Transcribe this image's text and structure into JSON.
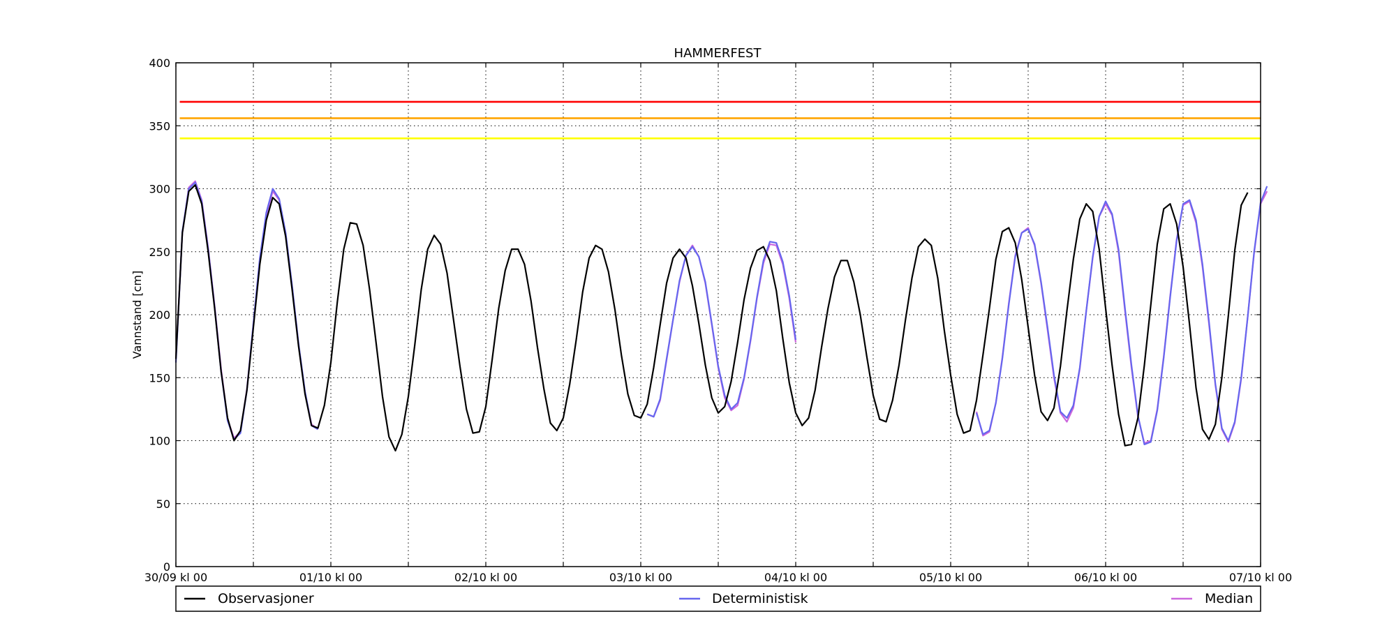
{
  "chart_data": {
    "type": "line",
    "title": "HAMMERFEST",
    "ylabel": "Vannstand [cm]",
    "xlabel": "",
    "ylim": [
      0,
      400
    ],
    "xlim": [
      0,
      168
    ],
    "x_unit": "hours since 30/09 kl 00",
    "yticks": [
      0,
      50,
      100,
      150,
      200,
      250,
      300,
      350,
      400
    ],
    "xticks": [
      {
        "x": 0,
        "label": "30/09 kl 00"
      },
      {
        "x": 12,
        "label": ""
      },
      {
        "x": 24,
        "label": "01/10 kl 00"
      },
      {
        "x": 36,
        "label": ""
      },
      {
        "x": 48,
        "label": "02/10 kl 00"
      },
      {
        "x": 60,
        "label": ""
      },
      {
        "x": 72,
        "label": "03/10 kl 00"
      },
      {
        "x": 84,
        "label": ""
      },
      {
        "x": 96,
        "label": "04/10 kl 00"
      },
      {
        "x": 108,
        "label": ""
      },
      {
        "x": 120,
        "label": "05/10 kl 00"
      },
      {
        "x": 132,
        "label": ""
      },
      {
        "x": 144,
        "label": "06/10 kl 00"
      },
      {
        "x": 156,
        "label": ""
      },
      {
        "x": 168,
        "label": "07/10 kl 00"
      }
    ],
    "grid": true,
    "thresholds": [
      {
        "value": 369,
        "color": "#ff0000"
      },
      {
        "value": 356,
        "color": "#ffa500"
      },
      {
        "value": 340,
        "color": "#ffff00"
      }
    ],
    "series": [
      {
        "name": "Observasjoner",
        "color": "#000000",
        "width": 2.2,
        "segments": [
          {
            "x0": 0,
            "values": [
              165,
              265,
              298,
              303,
              288,
              250,
              205,
              155,
              118,
              100,
              108,
              140,
              190,
              240,
              275,
              293,
              288,
              262,
              220,
              175,
              137,
              112,
              110,
              128,
              162,
              210,
              252,
              273,
              272,
              255,
              220,
              178,
              135,
              103,
              92,
              105,
              135,
              176,
              220,
              252,
              263,
              256,
              233,
              196,
              159,
              125,
              106,
              107,
              127,
              165,
              205,
              235,
              252,
              252,
              240,
              211,
              174,
              141,
              114,
              108,
              118,
              145,
              180,
              218,
              245,
              255,
              252,
              234,
              204,
              168,
              137,
              120,
              118,
              129,
              158,
              192,
              225,
              245,
              252,
              245,
              223,
              193,
              160,
              134,
              122,
              127,
              147,
              178,
              212,
              237,
              251,
              254,
              243,
              219,
              181,
              146,
              122,
              112,
              118,
              140,
              174,
              205,
              230,
              243,
              243,
              226,
              200,
              167,
              136,
              117,
              115,
              132,
              160,
              196,
              229,
              254,
              260,
              255,
              229,
              188,
              152,
              121,
              106,
              108,
              132,
              168,
              205,
              244,
              266,
              269,
              257,
              228,
              190,
              152,
              123,
              116,
              126,
              159,
              203,
              244,
              276,
              288,
              282,
              252,
              205,
              160,
              121,
              96,
              97,
              118,
              160,
              208,
              256,
              284,
              288,
              272,
              238,
              192,
              142,
              109,
              101,
              113,
              150,
              199,
              251,
              287,
              297
            ]
          }
        ]
      },
      {
        "name": "Deterministisk",
        "color": "#6666ee",
        "width": 2.2,
        "segments": [
          {
            "x0": 0,
            "values": [
              162,
              266,
              300,
              305,
              290,
              252,
              206,
              155,
              116,
              101,
              106,
              140,
              193,
              245,
              281,
              300,
              292,
              265,
              223,
              177,
              139,
              112,
              109
            ]
          },
          {
            "x0": 73,
            "values": [
              121,
              119,
              133,
              165,
              196,
              227,
              247,
              254,
              246,
              226,
              193,
              159,
              136,
              125,
              130,
              150,
              180,
              214,
              243,
              258,
              257,
              242,
              215,
              180
            ]
          },
          {
            "x0": 124,
            "values": [
              122,
              105,
              108,
              130,
              165,
              208,
              246,
              265,
              268,
              256,
              226,
              190,
              152,
              123,
              118,
              128,
              158,
              203,
              246,
              278,
              290,
              280,
              252,
              205,
              160,
              120,
              97,
              99,
              124,
              166,
              214,
              259,
              288,
              291,
              275,
              240,
              195,
              145,
              110,
              100,
              115,
              150,
              198,
              250,
              289,
              302
            ]
          }
        ]
      },
      {
        "name": "Median",
        "color": "#cc66dd",
        "width": 2.2,
        "segments": [
          {
            "x0": 0,
            "values": [
              165,
              265,
              301,
              306,
              291,
              253,
              207,
              157,
              117,
              102,
              107,
              141,
              192,
              244,
              279,
              298,
              291,
              264,
              222,
              176,
              138,
              113,
              109
            ]
          },
          {
            "x0": 73,
            "values": [
              121,
              119,
              132,
              164,
              196,
              226,
              247,
              255,
              246,
              225,
              192,
              158,
              134,
              124,
              128,
              149,
              179,
              213,
              241,
              256,
              255,
              240,
              213,
              178
            ]
          },
          {
            "x0": 124,
            "values": [
              123,
              104,
              107,
              130,
              166,
              209,
              247,
              265,
              269,
              255,
              225,
              188,
              150,
              122,
              115,
              126,
              157,
              203,
              245,
              278,
              288,
              279,
              250,
              203,
              158,
              119,
              98,
              100,
              125,
              167,
              215,
              260,
              287,
              290,
              273,
              238,
              193,
              144,
              109,
              99,
              114,
              149,
              198,
              249,
              288,
              298
            ]
          }
        ]
      }
    ],
    "legend": {
      "placement": "bottom",
      "entries": [
        "Observasjoner",
        "Deterministisk",
        "Median"
      ]
    }
  }
}
